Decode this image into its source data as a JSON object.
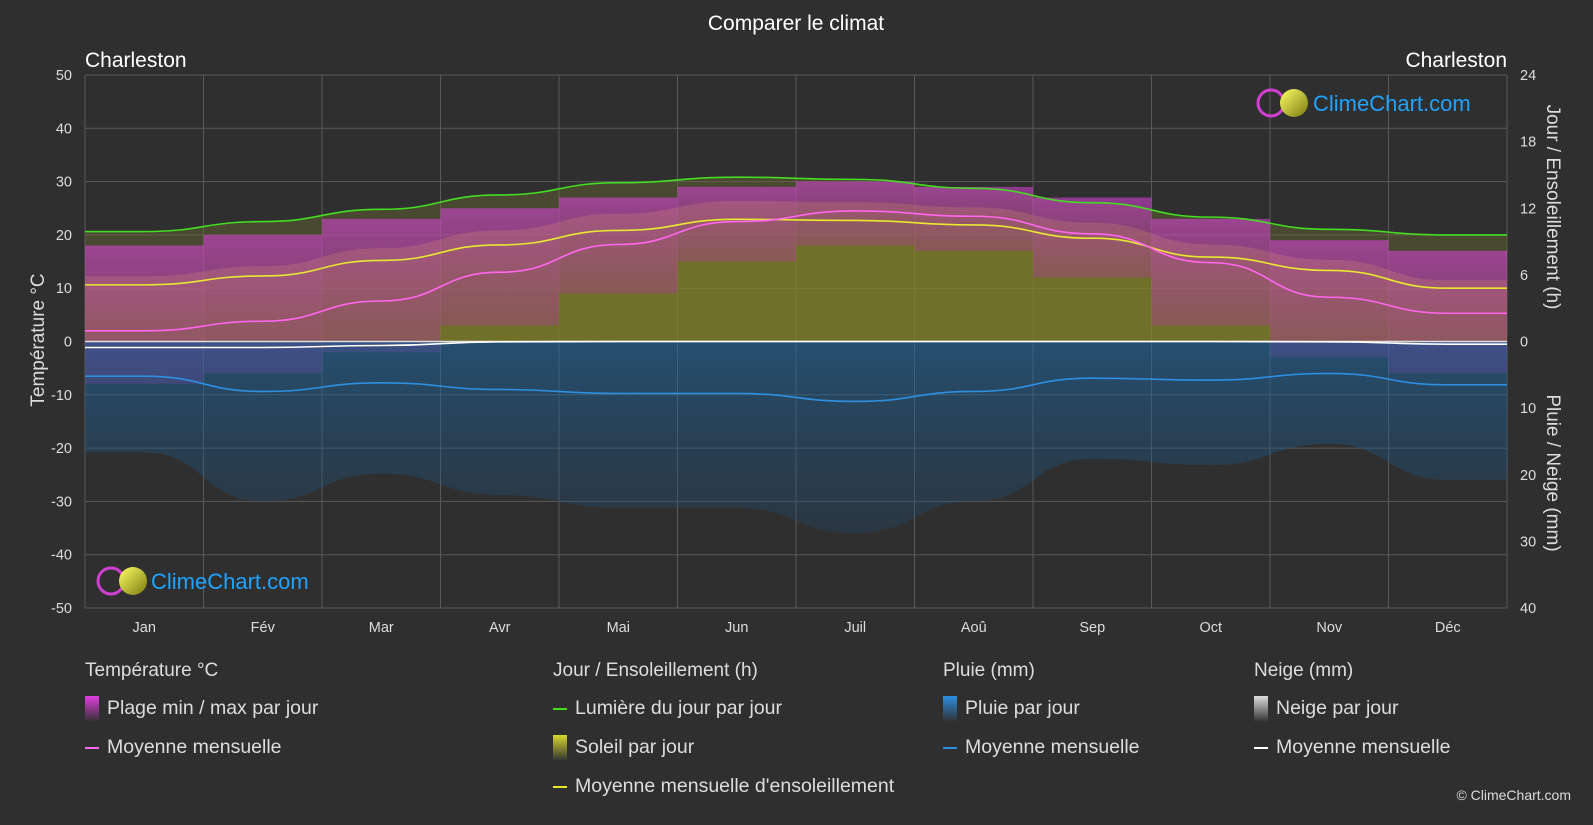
{
  "title": "Comparer le climat",
  "location_left": "Charleston",
  "location_right": "Charleston",
  "watermark": "ClimeChart.com",
  "copyright": "© ClimeChart.com",
  "colors": {
    "background": "#2f2f2f",
    "grid": "#5a5a5a",
    "daylight": "#44dd22",
    "sunshine_line": "#e8e830",
    "temp_line": "#ff66ee",
    "temp_band": "#d63fc8",
    "sun_band": "#8f8f24",
    "rain_line": "#2e8fe0",
    "rain_band": "#1d6aa6",
    "snow_line": "#ffffff",
    "logo_blue": "#1fa3ff"
  },
  "chart_data": {
    "type": "area",
    "title": "Comparer le climat",
    "months": [
      "Jan",
      "Fév",
      "Mar",
      "Avr",
      "Mai",
      "Jun",
      "Juil",
      "Aoû",
      "Sep",
      "Oct",
      "Nov",
      "Déc"
    ],
    "left_axis": {
      "label": "Température °C",
      "ylim": [
        -50,
        50
      ],
      "ticks": [
        50,
        40,
        30,
        20,
        10,
        0,
        -10,
        -20,
        -30,
        -40,
        -50
      ]
    },
    "right_axis_top": {
      "label": "Jour / Ensoleillement (h)",
      "ylim": [
        0,
        24
      ],
      "ticks": [
        24,
        18,
        12,
        6,
        0
      ]
    },
    "right_axis_bottom": {
      "label": "Pluie / Neige (mm)",
      "ylim": [
        0,
        40
      ],
      "ticks": [
        0,
        10,
        20,
        30,
        40
      ]
    },
    "series": [
      {
        "name": "Lumière du jour par jour",
        "unit": "h",
        "values": [
          9.9,
          10.8,
          11.9,
          13.2,
          14.3,
          14.8,
          14.6,
          13.8,
          12.5,
          11.2,
          10.1,
          9.6
        ]
      },
      {
        "name": "Moyenne mensuelle d'ensoleillement",
        "unit": "h",
        "values": [
          5.1,
          5.9,
          7.3,
          8.7,
          10.0,
          11.0,
          10.9,
          10.5,
          9.3,
          7.6,
          6.4,
          4.8
        ]
      },
      {
        "name": "Moyenne mensuelle",
        "group": "Température °C",
        "unit": "°C",
        "values": [
          2.0,
          3.8,
          7.6,
          13.0,
          18.2,
          22.5,
          24.5,
          23.5,
          20.2,
          14.8,
          8.3,
          5.3
        ]
      },
      {
        "name": "Plage min / max par jour",
        "unit": "°C",
        "max": [
          18,
          20,
          23,
          25,
          27,
          29,
          30,
          29,
          27,
          23,
          19,
          17
        ],
        "min": [
          -8,
          -6,
          -2,
          3,
          9,
          15,
          18,
          17,
          12,
          3,
          -3,
          -6
        ]
      },
      {
        "name": "Moyenne mensuelle",
        "group": "Pluie (mm)",
        "unit": "mm",
        "values": [
          5.2,
          7.5,
          6.2,
          7.2,
          7.8,
          7.8,
          9.0,
          7.5,
          5.5,
          5.8,
          4.8,
          6.5
        ]
      },
      {
        "name": "Moyenne mensuelle",
        "group": "Neige (mm)",
        "unit": "mm",
        "values": [
          0.9,
          0.9,
          0.6,
          0.05,
          0,
          0,
          0,
          0,
          0,
          0,
          0.05,
          0.4
        ]
      }
    ]
  },
  "legend": {
    "groups": [
      {
        "head": "Température °C",
        "items": [
          {
            "label": "Plage min / max par jour",
            "kind": "bar",
            "color": "#e040e0"
          },
          {
            "label": "Moyenne mensuelle",
            "kind": "line",
            "color": "#ff66ee"
          }
        ]
      },
      {
        "head": "Jour / Ensoleillement (h)",
        "items": [
          {
            "label": "Lumière du jour par jour",
            "kind": "line",
            "color": "#44dd22"
          },
          {
            "label": "Soleil par jour",
            "kind": "bar",
            "color": "#d8d830"
          },
          {
            "label": "Moyenne mensuelle d'ensoleillement",
            "kind": "line",
            "color": "#e8e830"
          }
        ]
      },
      {
        "head": "Pluie (mm)",
        "items": [
          {
            "label": "Pluie par jour",
            "kind": "bar",
            "color": "#2e8fe0"
          },
          {
            "label": "Moyenne mensuelle",
            "kind": "line",
            "color": "#2e8fe0"
          }
        ]
      },
      {
        "head": "Neige (mm)",
        "items": [
          {
            "label": "Neige par jour",
            "kind": "bar",
            "color": "#dddddd"
          },
          {
            "label": "Moyenne mensuelle",
            "kind": "line",
            "color": "#ffffff"
          }
        ]
      }
    ]
  }
}
